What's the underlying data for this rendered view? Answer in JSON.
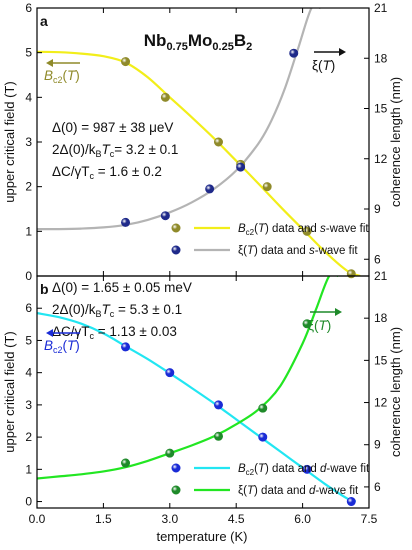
{
  "chart_data": [
    {
      "type": "line",
      "panel_label": "a",
      "title": "Nb0.75Mo0.25B2",
      "title_parts": {
        "base": "Nb",
        "sub1": "0.75",
        "mid": "Mo",
        "sub2": "0.25",
        "tail": "B",
        "sub3": "2"
      },
      "xlabel": "temperature (K)",
      "xlim": [
        0,
        7.5
      ],
      "ylabel_left": "upper critical field (T)",
      "ylim_left": [
        0,
        6
      ],
      "yticks_left": [
        0,
        1,
        2,
        3,
        4,
        5,
        6
      ],
      "ylabel_right": "coherence length (nm)",
      "ylim_right": [
        5,
        21
      ],
      "yticks_right": [
        6,
        9,
        12,
        15,
        18,
        21
      ],
      "grid": false,
      "legend_position": "bottom-right",
      "annotations": {
        "delta0": "Δ(0) = 987 ± 38 μeV",
        "ratio_pre": "2Δ(0)/k",
        "ratio_sub": "B",
        "ratio_mid": "T",
        "ratio_sub2": "c",
        "ratio_post": "= 3.2 ± 0.1",
        "jump_pre": "ΔC/γT",
        "jump_sub": "c",
        "jump_post": " = 1.6 ± 0.2",
        "bc2_arrow_label": "Bc2(T)",
        "xi_arrow_label": "ξ(T)"
      },
      "series": [
        {
          "name": "Bc2(T) data and s-wave fit",
          "axis": "left",
          "marker_color": "#8f8a2a",
          "line_color": "#f2ee1a",
          "data_x": [
            2.0,
            2.9,
            4.1,
            4.6,
            5.2,
            6.1,
            7.1
          ],
          "data_y": [
            4.8,
            4.0,
            3.0,
            2.5,
            2.0,
            1.0,
            0.05
          ],
          "fit_x": [
            0.0,
            0.5,
            1.0,
            1.5,
            2.0,
            2.5,
            3.0,
            3.5,
            4.0,
            4.5,
            5.0,
            5.5,
            6.0,
            6.5,
            7.0,
            7.3
          ],
          "fit_y": [
            5.02,
            5.01,
            4.98,
            4.92,
            4.78,
            4.45,
            4.0,
            3.55,
            3.08,
            2.58,
            2.07,
            1.55,
            1.05,
            0.55,
            0.12,
            0.0
          ]
        },
        {
          "name": "ξ(T) data and s-wave fit",
          "axis": "right",
          "marker_color": "#1f2a8a",
          "line_color": "#b4b4b4",
          "data_x": [
            2.0,
            2.9,
            3.9,
            4.6,
            5.8
          ],
          "data_y": [
            8.2,
            8.6,
            10.2,
            11.5,
            18.3
          ],
          "fit_x": [
            0.0,
            0.5,
            1.0,
            1.5,
            2.0,
            2.5,
            3.0,
            3.5,
            4.0,
            4.5,
            5.0,
            5.3,
            5.6,
            5.9,
            6.2,
            6.4
          ],
          "fit_y": [
            7.8,
            7.8,
            7.83,
            7.9,
            8.05,
            8.35,
            8.8,
            9.4,
            10.2,
            11.3,
            12.9,
            14.3,
            16.2,
            18.6,
            21.0,
            21.0
          ]
        }
      ]
    },
    {
      "type": "line",
      "panel_label": "b",
      "xlabel": "temperature (K)",
      "xlim": [
        0,
        7.5
      ],
      "xticks": [
        0.0,
        1.5,
        3.0,
        4.5,
        6.0,
        7.5
      ],
      "xtick_labels": [
        "0.0",
        "1.5",
        "3.0",
        "4.5",
        "6.0",
        "7.5"
      ],
      "ylabel_left": "upper critical field (T)",
      "ylim_left": [
        -0.2,
        7
      ],
      "yticks_left": [
        0,
        1,
        2,
        3,
        4,
        5,
        6
      ],
      "ylabel_right": "coherence length (nm)",
      "ylim_right": [
        4.5,
        21
      ],
      "yticks_right": [
        6,
        9,
        12,
        15,
        18,
        21
      ],
      "grid": false,
      "legend_position": "bottom-right",
      "annotations": {
        "delta0": "Δ(0) = 1.65 ± 0.05 meV",
        "ratio_pre": "2Δ(0)/k",
        "ratio_sub": "B",
        "ratio_mid": "T",
        "ratio_sub2": "c",
        "ratio_post": " = 5.3 ± 0.1",
        "jump_pre": "ΔC/γT",
        "jump_sub": "c",
        "jump_post": " = 1.13 ± 0.03",
        "bc2_arrow_label": "Bc2(T)",
        "xi_arrow_label": "ξ(T)"
      },
      "series": [
        {
          "name": "Bc2(T) data and d-wave fit",
          "axis": "left",
          "marker_color": "#1a2bd6",
          "line_color": "#22e6f2",
          "data_x": [
            2.0,
            3.0,
            4.1,
            5.1,
            6.1,
            7.1
          ],
          "data_y": [
            4.8,
            4.0,
            3.0,
            2.0,
            1.0,
            0.0
          ],
          "fit_x": [
            0.0,
            0.5,
            1.0,
            1.5,
            2.0,
            2.5,
            3.0,
            3.5,
            4.0,
            4.5,
            5.0,
            5.5,
            6.0,
            6.5,
            7.0,
            7.2
          ],
          "fit_y": [
            5.85,
            5.72,
            5.52,
            5.22,
            4.82,
            4.42,
            3.98,
            3.52,
            3.05,
            2.55,
            2.05,
            1.55,
            1.05,
            0.55,
            0.1,
            0.0
          ]
        },
        {
          "name": "ξ(T) data and d-wave fit",
          "axis": "right",
          "marker_color": "#1f8a2a",
          "line_color": "#22e622",
          "data_x": [
            2.0,
            3.0,
            4.1,
            5.1,
            6.1
          ],
          "data_y": [
            7.7,
            8.4,
            9.6,
            11.6,
            17.6
          ],
          "fit_x": [
            0.0,
            0.5,
            1.0,
            1.5,
            2.0,
            2.5,
            3.0,
            3.5,
            4.0,
            4.5,
            5.0,
            5.5,
            6.0,
            6.3,
            6.6,
            6.8
          ],
          "fit_y": [
            6.6,
            6.75,
            6.9,
            7.1,
            7.4,
            7.85,
            8.4,
            8.95,
            9.6,
            10.45,
            11.5,
            13.2,
            16.2,
            18.6,
            21.0,
            21.0
          ]
        }
      ]
    }
  ]
}
